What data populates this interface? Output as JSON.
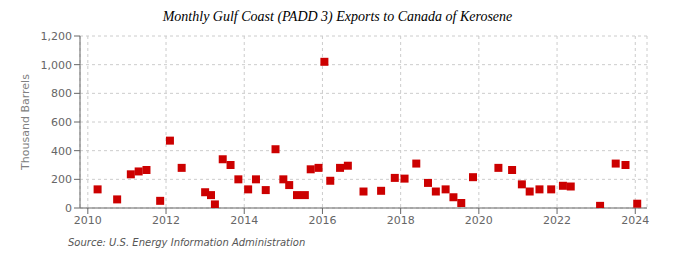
{
  "chart_data": {
    "type": "scatter",
    "title": "Monthly Gulf Coast (PADD 3) Exports to Canada of Kerosene",
    "ylabel": "Thousand Barrels",
    "annotations": [
      "Source: U.S. Energy Information Administration"
    ],
    "color": "#cc0000",
    "marker": "square",
    "grid": true,
    "xlim": [
      2009.8,
      2024.3
    ],
    "xticks": [
      2010,
      2012,
      2014,
      2016,
      2018,
      2020,
      2022,
      2024
    ],
    "ylim": [
      0,
      1200
    ],
    "yticks": [
      0,
      200,
      400,
      600,
      800,
      {
        "value": 1000,
        "label": "1,000"
      },
      {
        "value": 1200,
        "label": "1,200"
      }
    ],
    "x": [
      2010.25,
      2010.75,
      2011.1,
      2011.3,
      2011.5,
      2011.85,
      2012.1,
      2012.4,
      2013.0,
      2013.15,
      2013.25,
      2013.45,
      2013.65,
      2013.85,
      2014.1,
      2014.3,
      2014.55,
      2014.8,
      2015.0,
      2015.15,
      2015.35,
      2015.55,
      2015.7,
      2015.9,
      2016.05,
      2016.2,
      2016.45,
      2016.65,
      2017.05,
      2017.5,
      2017.85,
      2018.1,
      2018.4,
      2018.7,
      2018.9,
      2019.15,
      2019.35,
      2019.55,
      2019.85,
      2020.5,
      2020.85,
      2021.1,
      2021.3,
      2021.55,
      2021.85,
      2022.15,
      2022.35,
      2023.1,
      2023.5,
      2023.75,
      2024.05
    ],
    "values": [
      130,
      60,
      235,
      255,
      265,
      50,
      470,
      280,
      110,
      90,
      25,
      340,
      300,
      200,
      130,
      200,
      125,
      410,
      200,
      160,
      90,
      90,
      270,
      280,
      1020,
      190,
      280,
      295,
      115,
      120,
      210,
      205,
      310,
      175,
      115,
      130,
      75,
      35,
      215,
      280,
      265,
      165,
      115,
      130,
      130,
      155,
      150,
      15,
      310,
      300,
      30
    ]
  }
}
